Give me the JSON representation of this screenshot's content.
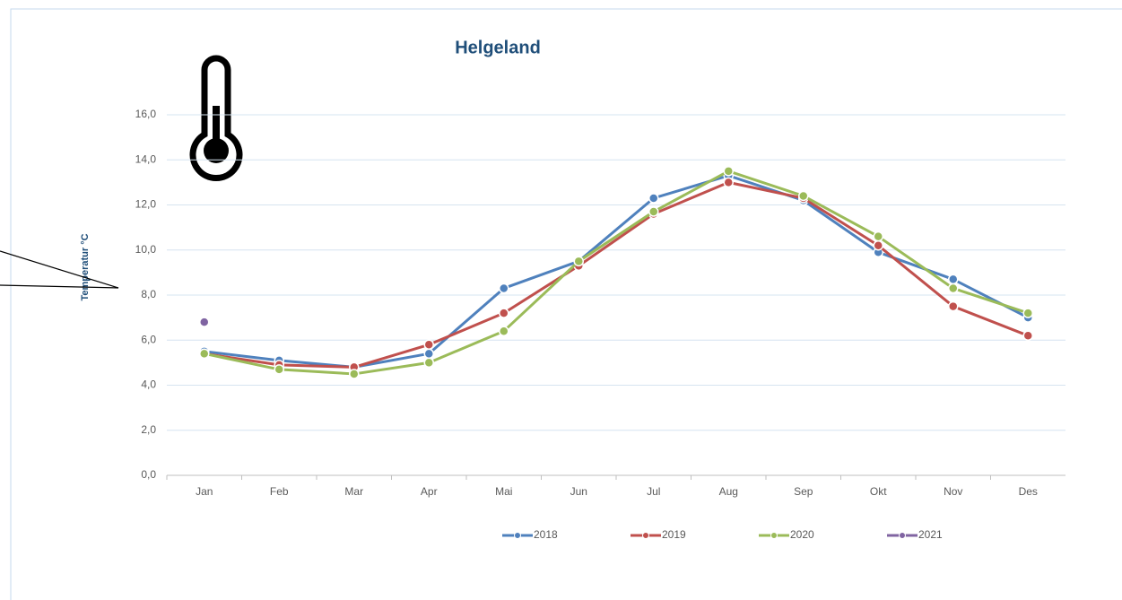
{
  "chart_data": {
    "type": "line",
    "title": "Helgeland",
    "y_label": "Temperatur °C",
    "categories": [
      "Jan",
      "Feb",
      "Mar",
      "Apr",
      "Mai",
      "Jun",
      "Jul",
      "Aug",
      "Sep",
      "Okt",
      "Nov",
      "Des"
    ],
    "series": [
      {
        "name": "2018",
        "color": "#4f81bd",
        "values": [
          5.5,
          5.1,
          4.8,
          5.4,
          8.3,
          9.5,
          12.3,
          13.3,
          12.2,
          9.9,
          8.7,
          7.0
        ]
      },
      {
        "name": "2019",
        "color": "#c0504d",
        "values": [
          5.4,
          4.9,
          4.8,
          5.8,
          7.2,
          9.3,
          11.6,
          13.0,
          12.3,
          10.2,
          7.5,
          6.2
        ]
      },
      {
        "name": "2020",
        "color": "#9bbb59",
        "values": [
          5.4,
          4.7,
          4.5,
          5.0,
          6.4,
          9.5,
          11.7,
          13.5,
          12.4,
          10.6,
          8.3,
          7.2
        ]
      },
      {
        "name": "2021",
        "color": "#8064a2",
        "values": [
          6.8,
          null,
          null,
          null,
          null,
          null,
          null,
          null,
          null,
          null,
          null,
          null
        ]
      }
    ],
    "ylim": [
      0,
      16
    ],
    "yticks": [
      {
        "value": 0,
        "label": "0,0"
      },
      {
        "value": 2,
        "label": "2,0"
      },
      {
        "value": 4,
        "label": "4,0"
      },
      {
        "value": 6,
        "label": "6,0"
      },
      {
        "value": 8,
        "label": "8,0"
      },
      {
        "value": 10,
        "label": "10,0"
      },
      {
        "value": 12,
        "label": "12,0"
      },
      {
        "value": 14,
        "label": "14,0"
      },
      {
        "value": 16,
        "label": "16,0"
      }
    ],
    "grid": true,
    "legend": "bottom"
  }
}
